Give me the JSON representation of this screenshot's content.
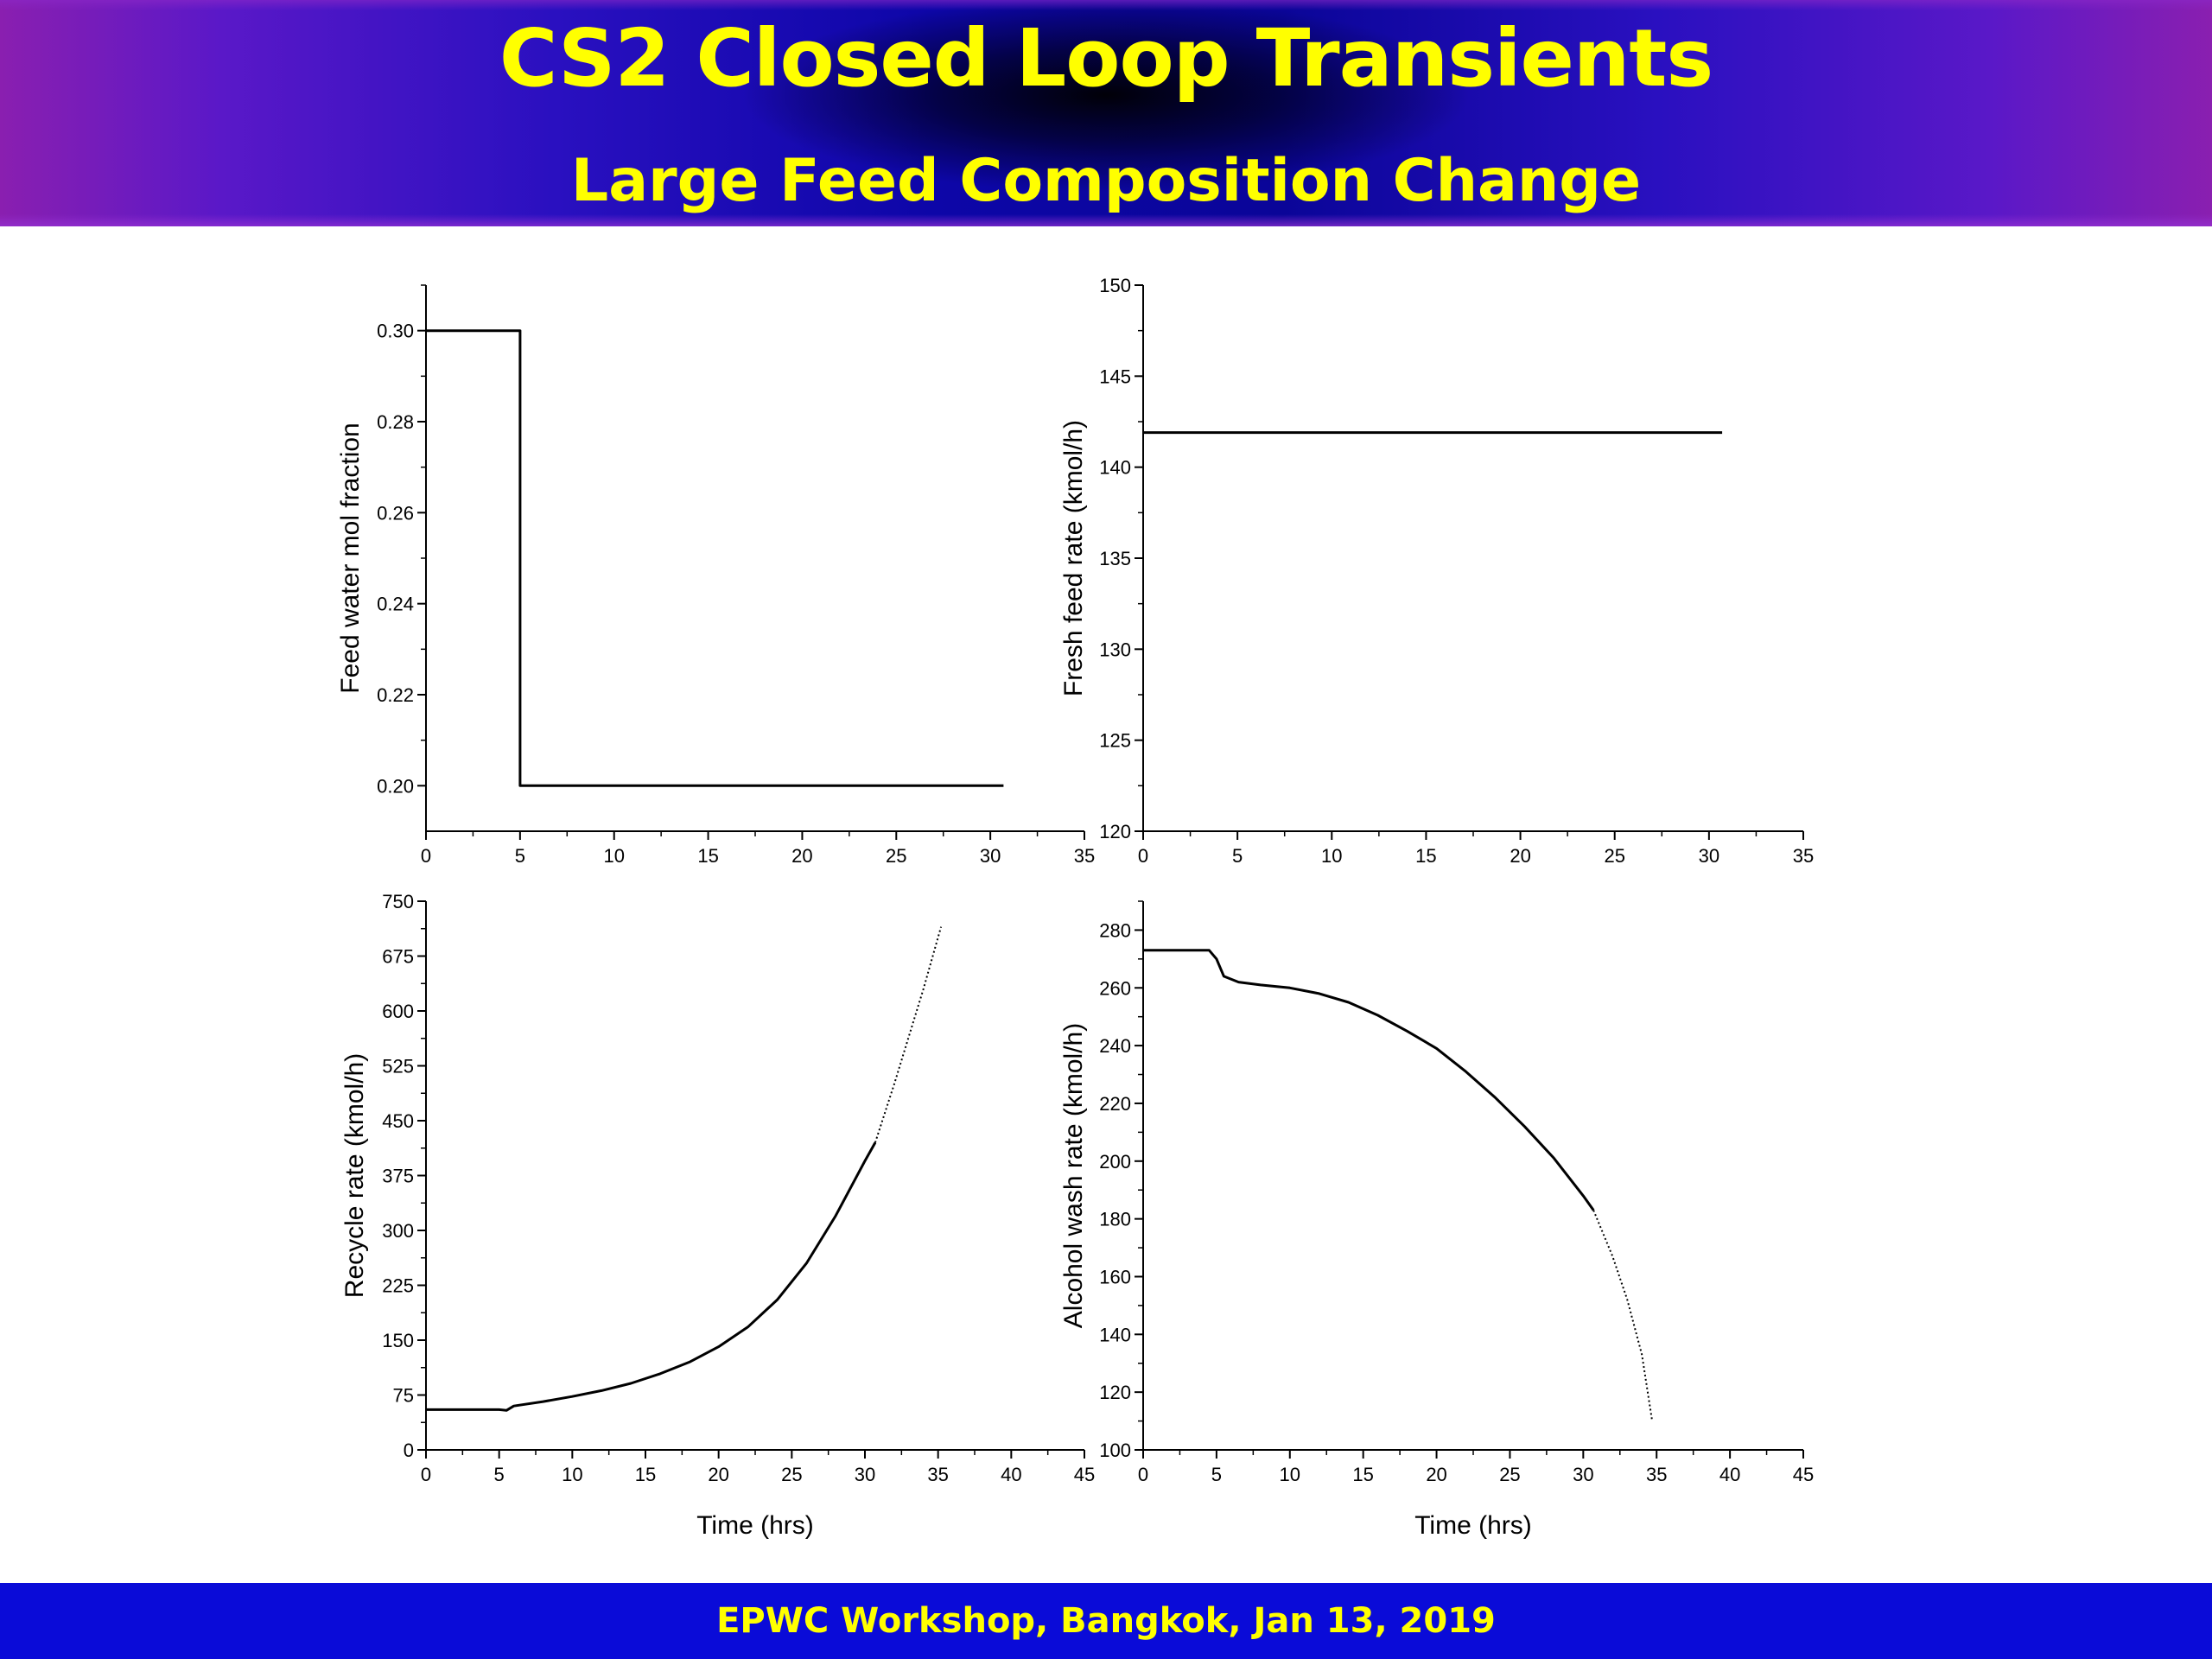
{
  "header": {
    "title": "CS2 Closed Loop Transients",
    "subtitle": "Large Feed Composition Change"
  },
  "footer": {
    "text": "EPWC Workshop, Bangkok, Jan 13, 2019"
  },
  "chart_data": [
    {
      "type": "line",
      "xlabel": "",
      "ylabel": "Feed water mol fraction",
      "xlim": [
        0,
        35
      ],
      "ylim": [
        0.19,
        0.31
      ],
      "xticks": [
        0,
        5,
        10,
        15,
        20,
        25,
        30,
        35
      ],
      "yticks": [
        0.2,
        0.22,
        0.24,
        0.26,
        0.28,
        0.3
      ],
      "ytick_labels": [
        "0.20",
        "0.22",
        "0.24",
        "0.26",
        "0.28",
        "0.30"
      ],
      "series": [
        {
          "x": [
            0,
            5,
            5,
            30.7
          ],
          "y": [
            0.3,
            0.3,
            0.2,
            0.2
          ]
        }
      ]
    },
    {
      "type": "line",
      "xlabel": "",
      "ylabel": "Fresh feed rate (kmol/h)",
      "xlim": [
        0,
        35
      ],
      "ylim": [
        120,
        150
      ],
      "xticks": [
        0,
        5,
        10,
        15,
        20,
        25,
        30,
        35
      ],
      "yticks": [
        120,
        125,
        130,
        135,
        140,
        145,
        150
      ],
      "ytick_labels": [
        "120",
        "125",
        "130",
        "135",
        "140",
        "145",
        "150"
      ],
      "series": [
        {
          "x": [
            0,
            30.7
          ],
          "y": [
            141.9,
            141.9
          ]
        }
      ]
    },
    {
      "type": "line",
      "xlabel": "Time (hrs)",
      "ylabel": "Recycle rate (kmol/h)",
      "xlim": [
        0,
        45
      ],
      "ylim": [
        0,
        750
      ],
      "xticks": [
        0,
        5,
        10,
        15,
        20,
        25,
        30,
        35,
        40,
        45
      ],
      "yticks": [
        0,
        75,
        150,
        225,
        300,
        375,
        450,
        525,
        600,
        675,
        750
      ],
      "ytick_labels": [
        "0",
        "75",
        "150",
        "225",
        "300",
        "375",
        "450",
        "525",
        "600",
        "675",
        "750"
      ],
      "series": [
        {
          "x": [
            0,
            5,
            5.5,
            6,
            8,
            10,
            12,
            14,
            16,
            18,
            20,
            22,
            24,
            26,
            28,
            30,
            30.7
          ],
          "y": [
            55,
            55,
            54,
            60,
            66,
            73,
            81,
            91,
            104,
            120,
            141,
            168,
            205,
            255,
            320,
            395,
            420
          ]
        },
        {
          "style": "dotted",
          "x": [
            30.7,
            32,
            33,
            34,
            35.2
          ],
          "y": [
            420,
            500,
            565,
            630,
            715
          ]
        }
      ]
    },
    {
      "type": "line",
      "xlabel": "Time (hrs)",
      "ylabel": "Alcohol wash rate (kmol/h)",
      "xlim": [
        0,
        45
      ],
      "ylim": [
        100,
        290
      ],
      "xticks": [
        0,
        5,
        10,
        15,
        20,
        25,
        30,
        35,
        40,
        45
      ],
      "yticks": [
        100,
        120,
        140,
        160,
        180,
        200,
        220,
        240,
        260,
        280
      ],
      "ytick_labels": [
        "100",
        "120",
        "140",
        "160",
        "180",
        "200",
        "220",
        "240",
        "260",
        "280"
      ],
      "series": [
        {
          "x": [
            0,
            4.5,
            5,
            5.5,
            6.5,
            8,
            10,
            12,
            14,
            16,
            18,
            20,
            22,
            24,
            26,
            28,
            30,
            30.7
          ],
          "y": [
            273,
            273,
            270,
            264,
            262,
            261,
            260,
            258,
            255,
            250.5,
            245,
            239,
            231,
            222,
            212,
            201,
            188,
            183
          ]
        },
        {
          "style": "dotted",
          "x": [
            30.7,
            32,
            33,
            34,
            34.7
          ],
          "y": [
            183,
            167,
            152,
            133,
            110
          ]
        }
      ]
    }
  ]
}
